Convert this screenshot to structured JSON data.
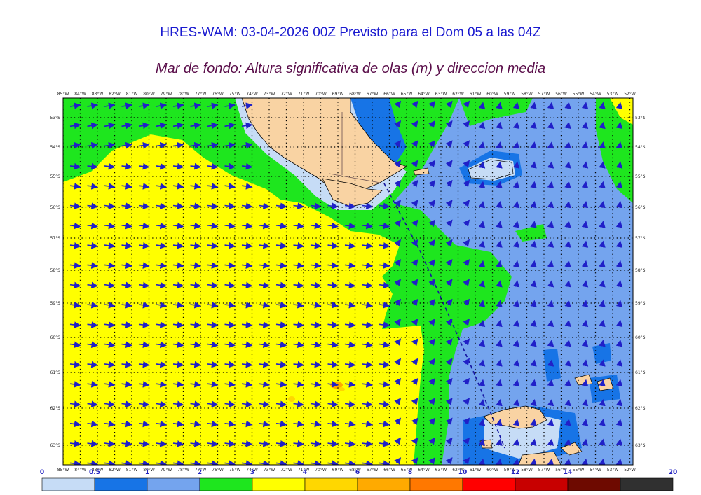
{
  "header": {
    "title": "HRES-WAM: 03-04-2026 00Z Previsto para el Dom 05 a las 04Z",
    "subtitle": "Mar de fondo: Altura significativa de olas (m) y direccion media"
  },
  "map": {
    "lon_labels": [
      "85°W",
      "84°W",
      "83°W",
      "82°W",
      "81°W",
      "80°W",
      "79°W",
      "78°W",
      "77°W",
      "76°W",
      "75°W",
      "74°W",
      "73°W",
      "72°W",
      "71°W",
      "70°W",
      "69°W",
      "68°W",
      "67°W",
      "66°W",
      "65°W",
      "64°W",
      "63°W",
      "62°W",
      "61°W",
      "60°W",
      "59°W",
      "58°W",
      "57°W",
      "56°W",
      "55°W",
      "54°W",
      "53°W",
      "52°W"
    ],
    "lat_labels": [
      "53°S",
      "54°S",
      "55°S",
      "56°S",
      "57°S",
      "58°S",
      "59°S",
      "60°S",
      "61°S",
      "62°S",
      "63°S"
    ],
    "land_color": "#f9d3a3",
    "arrow_color": "#2020c8"
  },
  "colorbar": {
    "ticks": [
      "0",
      "0.5",
      "1",
      "2",
      "3",
      "4",
      "6",
      "8",
      "10",
      "12",
      "14",
      "20"
    ],
    "colors": [
      "#c6dcf6",
      "#1774e6",
      "#74a4ee",
      "#1ee61e",
      "#ffff00",
      "#ffd700",
      "#ffaa00",
      "#ff7800",
      "#ff0000",
      "#c80000",
      "#6e0a00",
      "#303030"
    ]
  }
}
